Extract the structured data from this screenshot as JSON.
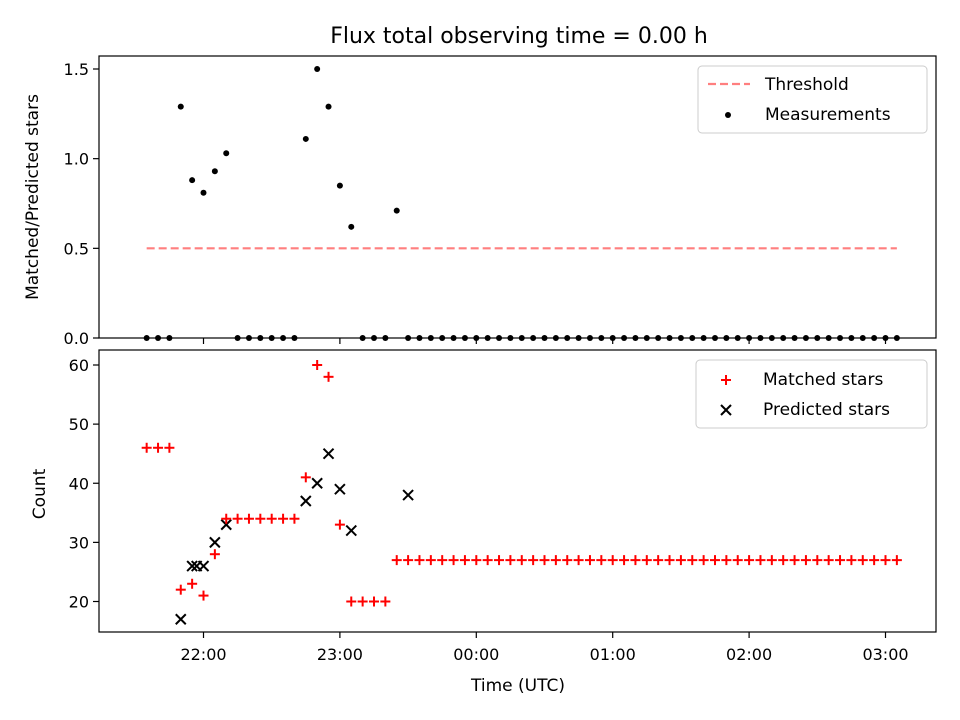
{
  "colors": {
    "threshold": "#ff7f7f",
    "measurement": "#000000",
    "matched": "#ff0000",
    "predicted": "#000000"
  },
  "chart_data": [
    {
      "type": "scatter",
      "title": "Flux total observing time = 0.00 h",
      "xlabel": "",
      "ylabel": "Matched/Predicted stars",
      "ylim": [
        0,
        1.58
      ],
      "yticks": [
        0.0,
        0.5,
        1.0,
        1.5
      ],
      "ytick_labels": [
        "0.0",
        "0.5",
        "1.0",
        "1.5"
      ],
      "legend_position": "top-right",
      "threshold": {
        "name": "Threshold",
        "value": 0.5,
        "x_start": "21:35",
        "x_end": "03:05"
      },
      "series": [
        {
          "name": "Measurements",
          "x": [
            "21:35",
            "21:40",
            "21:45",
            "21:50",
            "21:55",
            "22:00",
            "22:05",
            "22:10",
            "22:15",
            "22:20",
            "22:25",
            "22:30",
            "22:35",
            "22:40",
            "22:45",
            "22:50",
            "22:55",
            "23:00",
            "23:05",
            "23:10",
            "23:15",
            "23:20",
            "23:25",
            "23:30",
            "23:35",
            "23:40",
            "23:45",
            "23:50",
            "23:55",
            "00:00",
            "00:05",
            "00:10",
            "00:15",
            "00:20",
            "00:25",
            "00:30",
            "00:35",
            "00:40",
            "00:45",
            "00:50",
            "00:55",
            "01:00",
            "01:05",
            "01:10",
            "01:15",
            "01:20",
            "01:25",
            "01:30",
            "01:35",
            "01:40",
            "01:45",
            "01:50",
            "01:55",
            "02:00",
            "02:05",
            "02:10",
            "02:15",
            "02:20",
            "02:25",
            "02:30",
            "02:35",
            "02:40",
            "02:45",
            "02:50",
            "02:55",
            "03:00",
            "03:05"
          ],
          "values": [
            0,
            0,
            0,
            1.29,
            0.88,
            0.81,
            0.93,
            1.03,
            0,
            0,
            0,
            0,
            0,
            0,
            1.11,
            1.5,
            1.29,
            0.85,
            0.62,
            0,
            0,
            0,
            0.71,
            0,
            0,
            0,
            0,
            0,
            0,
            0,
            0,
            0,
            0,
            0,
            0,
            0,
            0,
            0,
            0,
            0,
            0,
            0,
            0,
            0,
            0,
            0,
            0,
            0,
            0,
            0,
            0,
            0,
            0,
            0,
            0,
            0,
            0,
            0,
            0,
            0,
            0,
            0,
            0,
            0,
            0,
            0,
            0
          ]
        }
      ]
    },
    {
      "type": "scatter",
      "title": "",
      "xlabel": "Time (UTC)",
      "ylabel": "Count",
      "ylim": [
        15,
        62
      ],
      "yticks": [
        20,
        30,
        40,
        50,
        60
      ],
      "ytick_labels": [
        "20",
        "30",
        "40",
        "50",
        "60"
      ],
      "xticks": [
        "22:00",
        "23:00",
        "00:00",
        "01:00",
        "02:00",
        "03:00"
      ],
      "legend_position": "top-right",
      "series": [
        {
          "name": "Matched stars",
          "x": [
            "21:35",
            "21:40",
            "21:45",
            "21:50",
            "21:55",
            "22:00",
            "22:05",
            "22:10",
            "22:15",
            "22:20",
            "22:25",
            "22:30",
            "22:35",
            "22:40",
            "22:45",
            "22:50",
            "22:55",
            "23:00",
            "23:05",
            "23:10",
            "23:15",
            "23:20",
            "23:25",
            "23:30",
            "23:35",
            "23:40",
            "23:45",
            "23:50",
            "23:55",
            "00:00",
            "00:05",
            "00:10",
            "00:15",
            "00:20",
            "00:25",
            "00:30",
            "00:35",
            "00:40",
            "00:45",
            "00:50",
            "00:55",
            "01:00",
            "01:05",
            "01:10",
            "01:15",
            "01:20",
            "01:25",
            "01:30",
            "01:35",
            "01:40",
            "01:45",
            "01:50",
            "01:55",
            "02:00",
            "02:05",
            "02:10",
            "02:15",
            "02:20",
            "02:25",
            "02:30",
            "02:35",
            "02:40",
            "02:45",
            "02:50",
            "02:55",
            "03:00",
            "03:05"
          ],
          "values": [
            46,
            46,
            46,
            22,
            23,
            21,
            28,
            34,
            34,
            34,
            34,
            34,
            34,
            34,
            41,
            60,
            58,
            33,
            20,
            20,
            20,
            20,
            27,
            27,
            27,
            27,
            27,
            27,
            27,
            27,
            27,
            27,
            27,
            27,
            27,
            27,
            27,
            27,
            27,
            27,
            27,
            27,
            27,
            27,
            27,
            27,
            27,
            27,
            27,
            27,
            27,
            27,
            27,
            27,
            27,
            27,
            27,
            27,
            27,
            27,
            27,
            27,
            27,
            27,
            27,
            27,
            27
          ]
        },
        {
          "name": "Predicted stars",
          "x": [
            "21:50",
            "21:55",
            "21:57",
            "22:00",
            "22:05",
            "22:10",
            "22:45",
            "22:50",
            "22:55",
            "23:00",
            "23:05",
            "23:30"
          ],
          "values": [
            17,
            26,
            26,
            26,
            30,
            33,
            37,
            40,
            45,
            39,
            32,
            38
          ]
        }
      ]
    }
  ]
}
